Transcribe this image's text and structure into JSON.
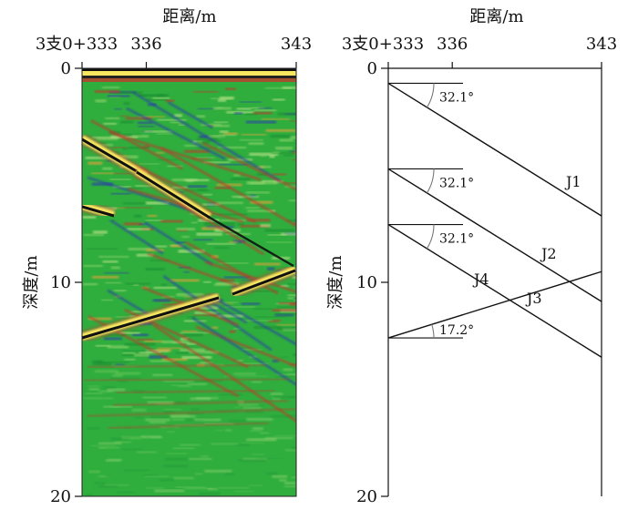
{
  "x_axis": {
    "title": "距离/m",
    "tick_labels": [
      "3支0+333",
      "336",
      "343"
    ],
    "tick_values": [
      333,
      336,
      343
    ],
    "range": [
      333,
      343
    ]
  },
  "y_axis": {
    "title": "深度/m",
    "tick_labels": [
      "0",
      "10",
      "20"
    ],
    "tick_values": [
      0,
      10,
      20
    ],
    "range": [
      0,
      20
    ],
    "inverted": true
  },
  "radar_panel": {
    "colors": {
      "background": "#2fae3e",
      "reflection_bright": "#f7e860",
      "reflection_dark": "#111111",
      "reflection_red": "#c0392b",
      "reflection_blue": "#2b3fa8"
    }
  },
  "interpretation_panel": {
    "joints": [
      {
        "name": "J1",
        "angle_label": "32.1°",
        "start": [
          333,
          0.7
        ],
        "end": [
          343,
          6.9
        ]
      },
      {
        "name": "J2",
        "angle_label": "32.1°",
        "start": [
          333,
          4.7
        ],
        "end": [
          343,
          10.9
        ]
      },
      {
        "name": "J3",
        "angle_label": "32.1°",
        "start": [
          333,
          7.3
        ],
        "end": [
          343,
          13.5
        ]
      },
      {
        "name": "J4",
        "angle_label": "17.2°",
        "start": [
          333,
          12.6
        ],
        "end": [
          343,
          9.5
        ]
      }
    ]
  }
}
